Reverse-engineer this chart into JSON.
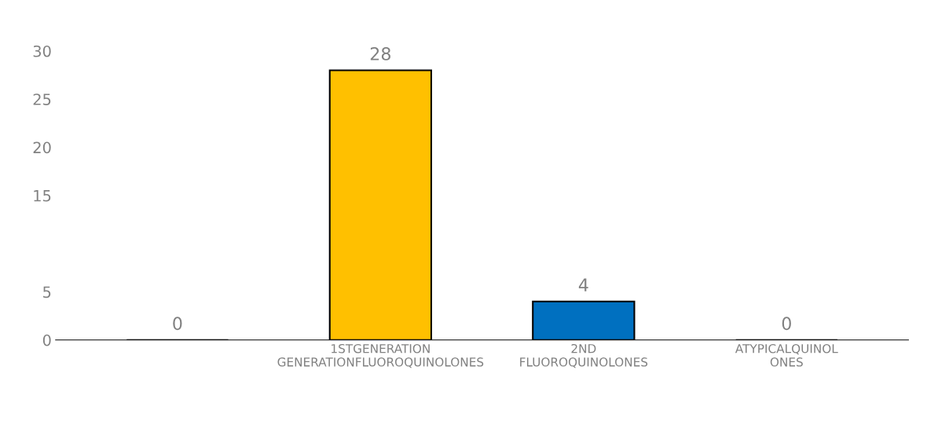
{
  "chart_data": {
    "type": "bar",
    "categories": [
      null,
      "1STGENERATION\nGENERATIONFLUOROQUINOLONES",
      "2ND\nFLUOROQUINOLONES",
      "ATYPICALQUINOL\nONES"
    ],
    "values": [
      0,
      28,
      4,
      0
    ],
    "colors": [
      "#000000",
      "#ffc000",
      "#0070c0",
      "#000000"
    ],
    "ylim": [
      0,
      30
    ],
    "yticks": [
      0,
      5,
      15,
      20,
      25,
      30
    ],
    "data_labels": true,
    "grid": false,
    "legend": false
  }
}
